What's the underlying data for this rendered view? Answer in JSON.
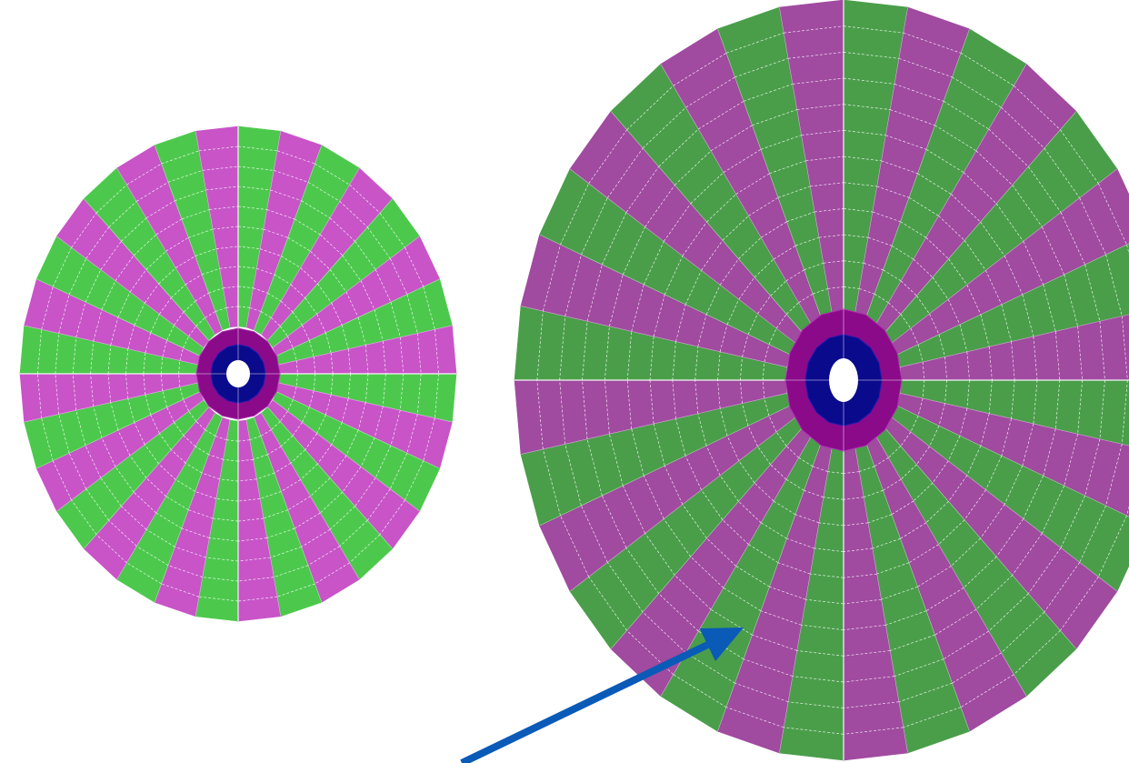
{
  "colors": {
    "background": "#ffffff",
    "left_sector_a": "#c854c8",
    "left_sector_b": "#4cc94c",
    "right_sector_a": "#a04aa0",
    "right_sector_b": "#4a9e4a",
    "hub_outer": "#8a0a8a",
    "hub_inner": "#0a0a8c",
    "hole": "#ffffff",
    "panel_lines": "#ffffff",
    "arrow": "#0a5ab8"
  },
  "icons": {
    "arrow": "arrow-icon"
  },
  "discs": [
    {
      "id": "left-disc",
      "sectors": 32,
      "radial_divisions": 10
    },
    {
      "id": "right-disc",
      "sectors": 32,
      "radial_divisions": 12
    }
  ]
}
